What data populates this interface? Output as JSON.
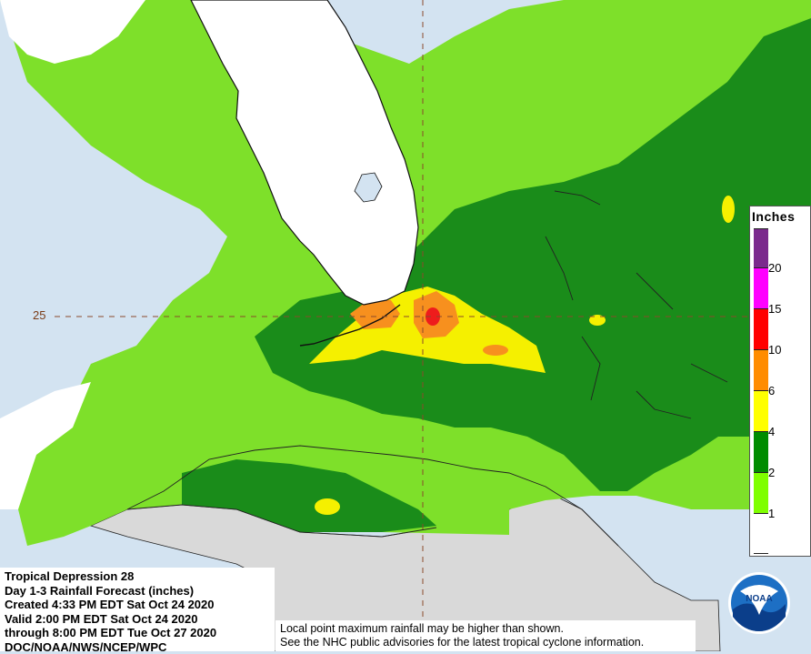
{
  "map": {
    "latitude_label": "25",
    "ocean_color": "#d3e3f1",
    "land_color": "#ffffff",
    "outside_land_color": "#d9d9d9"
  },
  "legend": {
    "title": "Inches",
    "ticks": [
      "20",
      "15",
      "10",
      "6",
      "4",
      "2",
      "1"
    ],
    "bands": [
      {
        "range": "20+",
        "color": "#7b2a8d"
      },
      {
        "range": "15-20",
        "color": "#ff00ff"
      },
      {
        "range": "10-15",
        "color": "#ff0000"
      },
      {
        "range": "6-10",
        "color": "#ff8c00"
      },
      {
        "range": "4-6",
        "color": "#ffff00"
      },
      {
        "range": "2-4",
        "color": "#008c00"
      },
      {
        "range": "1-2",
        "color": "#7fff00"
      },
      {
        "range": "0-1",
        "color": "#ffffff"
      }
    ]
  },
  "info": {
    "line1": "Tropical Depression 28",
    "line2": "Day 1-3 Rainfall Forecast (inches)",
    "line3": "Created 4:33 PM EDT Sat Oct 24 2020",
    "line4": "Valid 2:00 PM EDT Sat Oct 24 2020",
    "line5": "through 8:00 PM EDT Tue Oct 27 2020",
    "line6": "DOC/NOAA/NWS/NCEP/WPC"
  },
  "disclaimer": {
    "line1": "Local point maximum rainfall may be higher than shown.",
    "line2": "See the NHC public advisories for the latest tropical cyclone information."
  },
  "logo": {
    "text": "NOAA"
  }
}
